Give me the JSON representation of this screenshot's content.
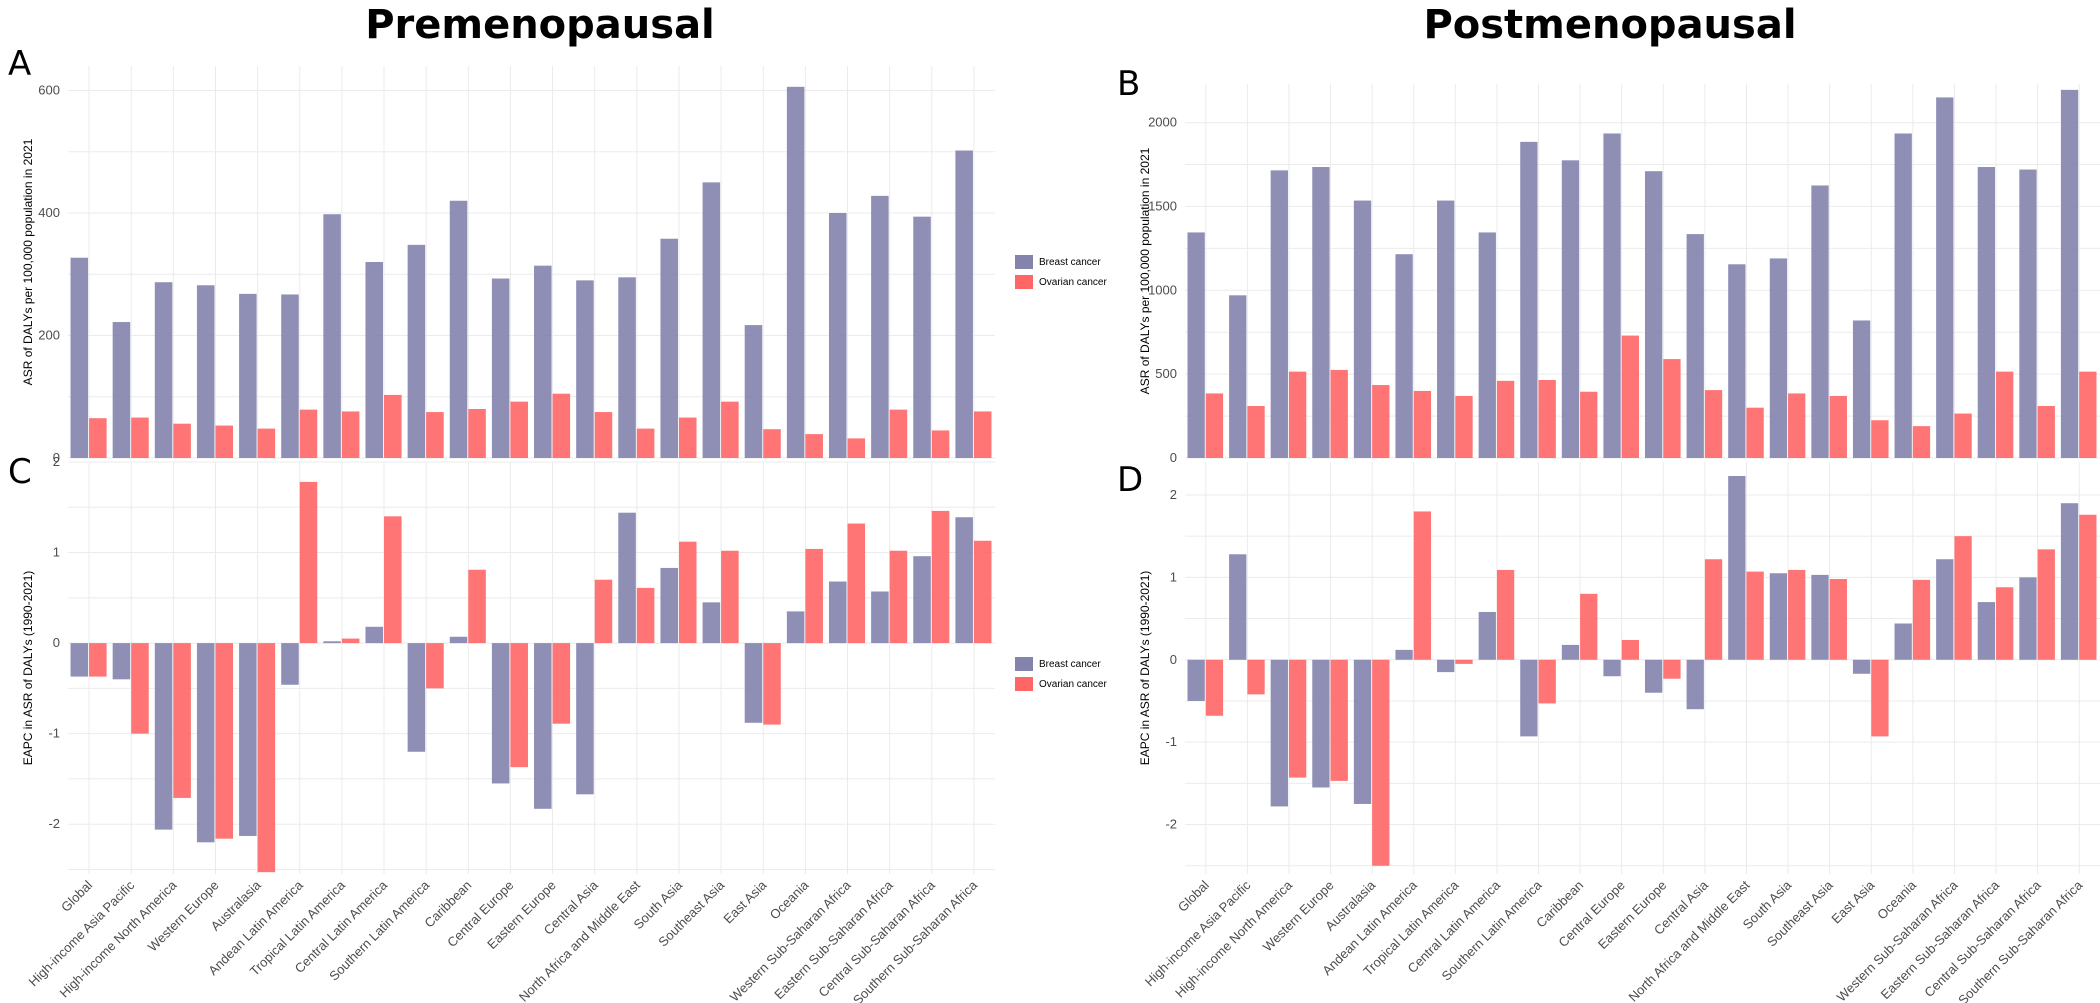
{
  "titles": {
    "left": "Premenopausal",
    "right": "Postmenopausal"
  },
  "panel_letters": {
    "A": "A",
    "B": "B",
    "C": "C",
    "D": "D"
  },
  "colors": {
    "breast": "#8383AD",
    "ovarian": "#FF6666"
  },
  "legend": {
    "breast": "Breast cancer",
    "ovarian": "Ovarian cancer"
  },
  "chart_data": [
    {
      "id": "A",
      "type": "bar",
      "ylabel": "ASR of DALYs per 100,000 population in 2021",
      "ylim": [
        0,
        640
      ],
      "yticks": [
        0,
        200,
        400,
        600
      ],
      "categories": [
        "Global",
        "High-income Asia Pacific",
        "High-income North America",
        "Western Europe",
        "Australasia",
        "Andean Latin America",
        "Tropical Latin America",
        "Central Latin America",
        "Southern Latin America",
        "Caribbean",
        "Central Europe",
        "Eastern Europe",
        "Central Asia",
        "North Africa and Middle East",
        "South Asia",
        "Southeast Asia",
        "East Asia",
        "Oceania",
        "Western Sub-Saharan Africa",
        "Eastern Sub-Saharan Africa",
        "Central Sub-Saharan Africa",
        "Southern Sub-Saharan Africa"
      ],
      "series": [
        {
          "name": "Breast cancer",
          "values": [
            327,
            222,
            287,
            282,
            268,
            267,
            398,
            320,
            348,
            420,
            293,
            314,
            290,
            295,
            358,
            450,
            217,
            606,
            400,
            428,
            394,
            502
          ]
        },
        {
          "name": "Ovarian cancer",
          "values": [
            65,
            66,
            56,
            53,
            48,
            79,
            76,
            103,
            75,
            80,
            92,
            105,
            75,
            48,
            66,
            92,
            47,
            39,
            32,
            79,
            45,
            76
          ]
        }
      ],
      "legend": "right",
      "grid": true
    },
    {
      "id": "B",
      "type": "bar",
      "ylabel": "ASR of DALYs per 100,000 population in 2021",
      "ylim": [
        0,
        2230
      ],
      "yticks": [
        0,
        500,
        1000,
        1500,
        2000
      ],
      "categories": [
        "Global",
        "High-income Asia Pacific",
        "High-income North America",
        "Western Europe",
        "Australasia",
        "Andean Latin America",
        "Tropical Latin America",
        "Central Latin America",
        "Southern Latin America",
        "Caribbean",
        "Central Europe",
        "Eastern Europe",
        "Central Asia",
        "North Africa and Middle East",
        "South Asia",
        "Southeast Asia",
        "East Asia",
        "Oceania",
        "Western Sub-Saharan Africa",
        "Eastern Sub-Saharan Africa",
        "Central Sub-Saharan Africa",
        "Southern Sub-Saharan Africa"
      ],
      "series": [
        {
          "name": "Breast cancer",
          "values": [
            1345,
            970,
            1715,
            1735,
            1535,
            1215,
            1535,
            1345,
            1885,
            1775,
            1935,
            1710,
            1335,
            1155,
            1190,
            1625,
            820,
            1935,
            2150,
            1735,
            1720,
            2195
          ]
        },
        {
          "name": "Ovarian cancer",
          "values": [
            385,
            310,
            515,
            525,
            435,
            400,
            370,
            460,
            465,
            395,
            730,
            590,
            405,
            300,
            385,
            370,
            225,
            190,
            265,
            515,
            310,
            515
          ]
        }
      ],
      "grid": true
    },
    {
      "id": "C",
      "type": "bar",
      "ylabel": "EAPC in ASR of DALYs (1990-2021)",
      "ylim": [
        -2.55,
        2.0
      ],
      "yticks": [
        -2,
        -1,
        0,
        1,
        2
      ],
      "categories": [
        "Global",
        "High-income Asia Pacific",
        "High-income North America",
        "Western Europe",
        "Australasia",
        "Andean Latin America",
        "Tropical Latin America",
        "Central Latin America",
        "Southern Latin America",
        "Caribbean",
        "Central Europe",
        "Eastern Europe",
        "Central Asia",
        "North Africa and Middle East",
        "South Asia",
        "Southeast Asia",
        "East Asia",
        "Oceania",
        "Western Sub-Saharan Africa",
        "Eastern Sub-Saharan Africa",
        "Central Sub-Saharan Africa",
        "Southern Sub-Saharan Africa"
      ],
      "series": [
        {
          "name": "Breast cancer",
          "values": [
            -0.37,
            -0.4,
            -2.06,
            -2.2,
            -2.13,
            -0.46,
            0.02,
            0.18,
            -1.2,
            0.07,
            -1.55,
            -1.83,
            -1.67,
            1.44,
            0.83,
            0.45,
            -0.88,
            0.35,
            0.68,
            0.57,
            0.96,
            1.39
          ]
        },
        {
          "name": "Ovarian cancer",
          "values": [
            -0.37,
            -1.0,
            -1.71,
            -2.16,
            -2.53,
            1.78,
            0.05,
            1.4,
            -0.5,
            0.81,
            -1.37,
            -0.89,
            0.7,
            0.61,
            1.12,
            1.02,
            -0.9,
            1.04,
            1.32,
            1.02,
            1.46,
            1.13
          ]
        }
      ],
      "legend": "right",
      "grid": true
    },
    {
      "id": "D",
      "type": "bar",
      "ylabel": "EAPC in ASR of DALYs (1990-2021)",
      "ylim": [
        -2.6,
        2.4
      ],
      "yticks": [
        -2,
        -1,
        0,
        1,
        2
      ],
      "categories": [
        "Global",
        "High-income Asia Pacific",
        "High-income North America",
        "Western Europe",
        "Australasia",
        "Andean Latin America",
        "Tropical Latin America",
        "Central Latin America",
        "Southern Latin America",
        "Caribbean",
        "Central Europe",
        "Eastern Europe",
        "Central Asia",
        "North Africa and Middle East",
        "South Asia",
        "Southeast Asia",
        "East Asia",
        "Oceania",
        "Western Sub-Saharan Africa",
        "Eastern Sub-Saharan Africa",
        "Central Sub-Saharan Africa",
        "Southern Sub-Saharan Africa"
      ],
      "series": [
        {
          "name": "Breast cancer",
          "values": [
            -0.5,
            1.28,
            -1.78,
            -1.55,
            -1.75,
            0.12,
            -0.15,
            0.58,
            -0.93,
            0.18,
            -0.2,
            -0.4,
            -0.6,
            2.23,
            1.05,
            1.03,
            -0.17,
            0.44,
            1.22,
            0.7,
            1.0,
            1.9
          ]
        },
        {
          "name": "Ovarian cancer",
          "values": [
            -0.68,
            -0.42,
            -1.43,
            -1.47,
            -2.5,
            1.8,
            -0.05,
            1.09,
            -0.53,
            0.8,
            0.24,
            -0.23,
            1.22,
            1.07,
            1.09,
            0.98,
            -0.93,
            0.97,
            1.5,
            0.88,
            1.34,
            1.76
          ]
        }
      ],
      "grid": true
    }
  ]
}
